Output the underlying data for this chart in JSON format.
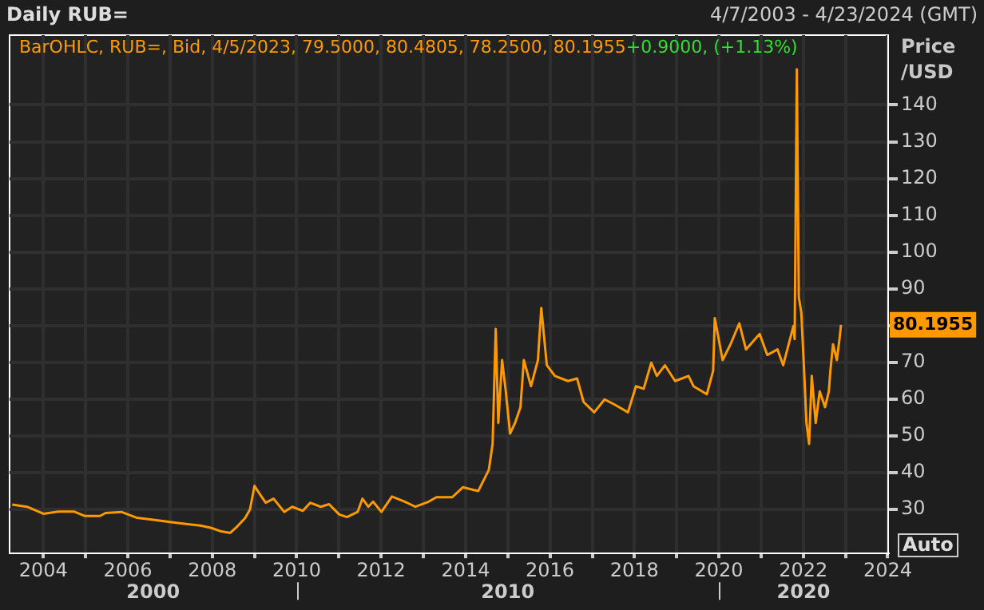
{
  "chart_data": {
    "type": "line",
    "title": "Daily RUB=",
    "subtitle": "4/7/2003 - 4/23/2024 (GMT)",
    "ylabel": "Price /USD",
    "x": [
      "2003-04-07",
      "2003-08-13",
      "2004-01-01",
      "2004-05-10",
      "2004-09-22",
      "2004-12-22",
      "2005-05-06",
      "2005-06-22",
      "2005-11-06",
      "2006-03-22",
      "2006-09-19",
      "2007-02-06",
      "2007-06-19",
      "2007-09-19",
      "2007-12-19",
      "2008-03-19",
      "2008-06-05",
      "2008-08-03",
      "2008-10-11",
      "2008-11-23",
      "2009-01-01",
      "2009-02-23",
      "2009-04-08",
      "2009-06-15",
      "2009-09-15",
      "2009-11-23",
      "2010-02-23",
      "2010-04-28",
      "2010-07-28",
      "2010-10-08",
      "2011-01-04",
      "2011-03-12",
      "2011-06-12",
      "2011-07-24",
      "2011-09-12",
      "2011-10-24",
      "2012-01-04",
      "2012-04-04",
      "2012-07-24",
      "2012-10-24",
      "2013-02-16",
      "2013-04-24",
      "2013-09-08",
      "2013-12-08",
      "2014-03-08",
      "2014-04-21",
      "2014-07-21",
      "2014-08-23",
      "2014-09-19",
      "2014-10-11",
      "2014-11-13",
      "2014-12-15",
      "2015-01-21",
      "2015-03-05",
      "2015-04-21",
      "2015-05-20",
      "2015-07-21",
      "2015-09-19",
      "2015-10-18",
      "2015-12-05",
      "2016-02-13",
      "2016-06-05",
      "2016-08-23",
      "2016-10-18",
      "2017-01-18",
      "2017-04-18",
      "2017-07-14",
      "2017-11-06",
      "2018-01-14",
      "2018-03-22",
      "2018-05-27",
      "2018-07-14",
      "2018-09-22",
      "2018-12-19",
      "2019-04-14",
      "2019-05-27",
      "2019-09-19",
      "2019-11-13",
      "2019-11-27",
      "2020-02-03",
      "2020-04-11",
      "2020-06-26",
      "2020-08-23",
      "2020-12-19",
      "2021-02-23",
      "2021-05-23",
      "2021-07-11",
      "2021-10-08",
      "2021-10-18",
      "2021-11-06",
      "2021-11-23",
      "2021-12-15",
      "2022-01-08",
      "2022-01-28",
      "2022-02-20",
      "2022-03-15",
      "2022-04-18",
      "2022-05-23",
      "2022-07-08",
      "2022-08-10",
      "2022-08-23",
      "2022-09-15",
      "2022-10-18",
      "2022-11-10",
      "2022-11-23"
    ],
    "series": [
      {
        "color": "#ff9900",
        "values": [
          31.3,
          30.7,
          28.8,
          29.4,
          29.4,
          28.2,
          28.2,
          29.0,
          29.3,
          27.7,
          27.0,
          26.4,
          25.9,
          25.6,
          25.0,
          24.0,
          23.6,
          25.3,
          27.6,
          30.0,
          36.4,
          33.8,
          31.8,
          32.9,
          29.3,
          30.7,
          29.6,
          31.8,
          30.7,
          31.4,
          28.6,
          27.9,
          29.3,
          32.9,
          30.7,
          32.1,
          29.3,
          33.5,
          32.1,
          30.7,
          32.1,
          33.3,
          33.3,
          36.0,
          35.3,
          35.0,
          40.7,
          47.8,
          79.1,
          53.5,
          70.6,
          62.1,
          50.6,
          53.5,
          57.8,
          70.6,
          63.5,
          70.6,
          84.8,
          69.2,
          66.3,
          64.9,
          65.6,
          59.2,
          56.4,
          59.9,
          58.5,
          56.4,
          63.5,
          62.8,
          69.9,
          66.3,
          69.2,
          64.9,
          66.3,
          63.5,
          61.3,
          67.7,
          82.0,
          70.6,
          74.9,
          80.6,
          73.5,
          77.7,
          72.0,
          73.5,
          69.2,
          79.9,
          76.3,
          149.7,
          87.7,
          83.4,
          67.7,
          53.5,
          47.8,
          66.3,
          53.5,
          62.1,
          57.8,
          62.1,
          67.7,
          74.9,
          70.6,
          76.3,
          80.1955
        ]
      }
    ],
    "xlim": [
      "2003-03-15",
      "2024-01-05"
    ],
    "xticks": [
      "2004",
      {
        "value": "2005",
        "label": null
      },
      "2006",
      {
        "value": "2007",
        "label": null
      },
      "2008",
      {
        "value": "2009",
        "label": null
      },
      "2010",
      {
        "value": "2011",
        "label": null
      },
      "2012",
      {
        "value": "2013",
        "label": null
      },
      "2014",
      {
        "value": "2015",
        "label": null
      },
      "2016",
      {
        "value": "2017",
        "label": null
      },
      "2018",
      {
        "value": "2019",
        "label": null
      },
      "2020",
      {
        "value": "2021",
        "label": null
      },
      "2022",
      {
        "value": "2023",
        "label": null
      },
      "2024"
    ],
    "ylim": [
      18,
      159
    ],
    "yticks": [
      30,
      40,
      50,
      60,
      70,
      {
        "value": 80,
        "label": null
      },
      90,
      100,
      110,
      120,
      130,
      140
    ],
    "grid": true,
    "legend": false,
    "annotations": [
      "BarOHLC, RUB=, Bid, 4/5/2023, 79.5000, 80.4805, 78.2500, 80.1955",
      "+0.9000, (+1.13%)",
      "80.1955",
      "Auto",
      "2000",
      "2010",
      "2020"
    ]
  }
}
